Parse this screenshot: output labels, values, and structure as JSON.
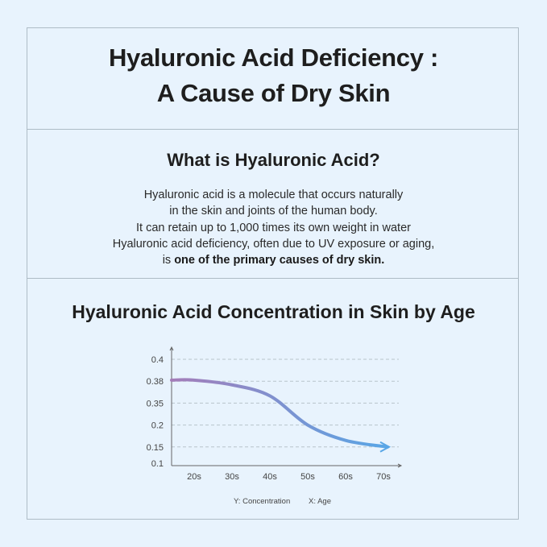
{
  "header": {
    "title_line1": "Hyaluronic Acid Deficiency :",
    "title_line2": "A Cause of Dry Skin"
  },
  "section": {
    "heading": "What is Hyaluronic Acid?",
    "lines": [
      "Hyaluronic acid is a molecule that occurs naturally",
      "in the skin and joints of the human body.",
      "It can retain up to 1,000 times its own weight in water",
      "Hyaluronic acid deficiency, often due to UV exposure or aging,"
    ],
    "last_prefix": "is ",
    "last_bold": "one of the primary causes of dry skin."
  },
  "chart_data": {
    "type": "line",
    "title": "Hyaluronic Acid Concentration in Skin by Age",
    "categories": [
      "20s",
      "30s",
      "40s",
      "50s",
      "60s",
      "70s"
    ],
    "values": [
      0.381,
      0.375,
      0.36,
      0.2,
      0.165,
      0.15
    ],
    "y_ticks": [
      0.4,
      0.38,
      0.35,
      0.2,
      0.15,
      0.1
    ],
    "ylim": [
      0.1,
      0.4
    ],
    "grid": "dashed horizontal",
    "legend": {
      "y": "Y: Concentration",
      "x": "X: Age"
    },
    "colors": {
      "start": "#a47db9",
      "end": "#58a6e6",
      "grid": "#b8c4cc",
      "axis": "#666666"
    }
  }
}
